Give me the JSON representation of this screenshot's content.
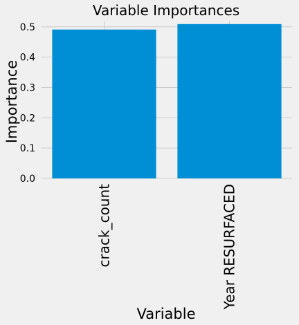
{
  "chart_data": {
    "type": "bar",
    "title": "Variable Importances",
    "xlabel": "Variable",
    "ylabel": "Importance",
    "categories": [
      "crack_count",
      "Year RESURFACED"
    ],
    "values": [
      0.491,
      0.509
    ],
    "ylim": [
      0,
      0.52
    ],
    "yticks": [
      "0.0",
      "0.1",
      "0.2",
      "0.3",
      "0.4",
      "0.5"
    ],
    "grid": true,
    "bar_color": "#008fd5",
    "grid_color": "#cbcbcb",
    "background": "#f0f0f0"
  }
}
